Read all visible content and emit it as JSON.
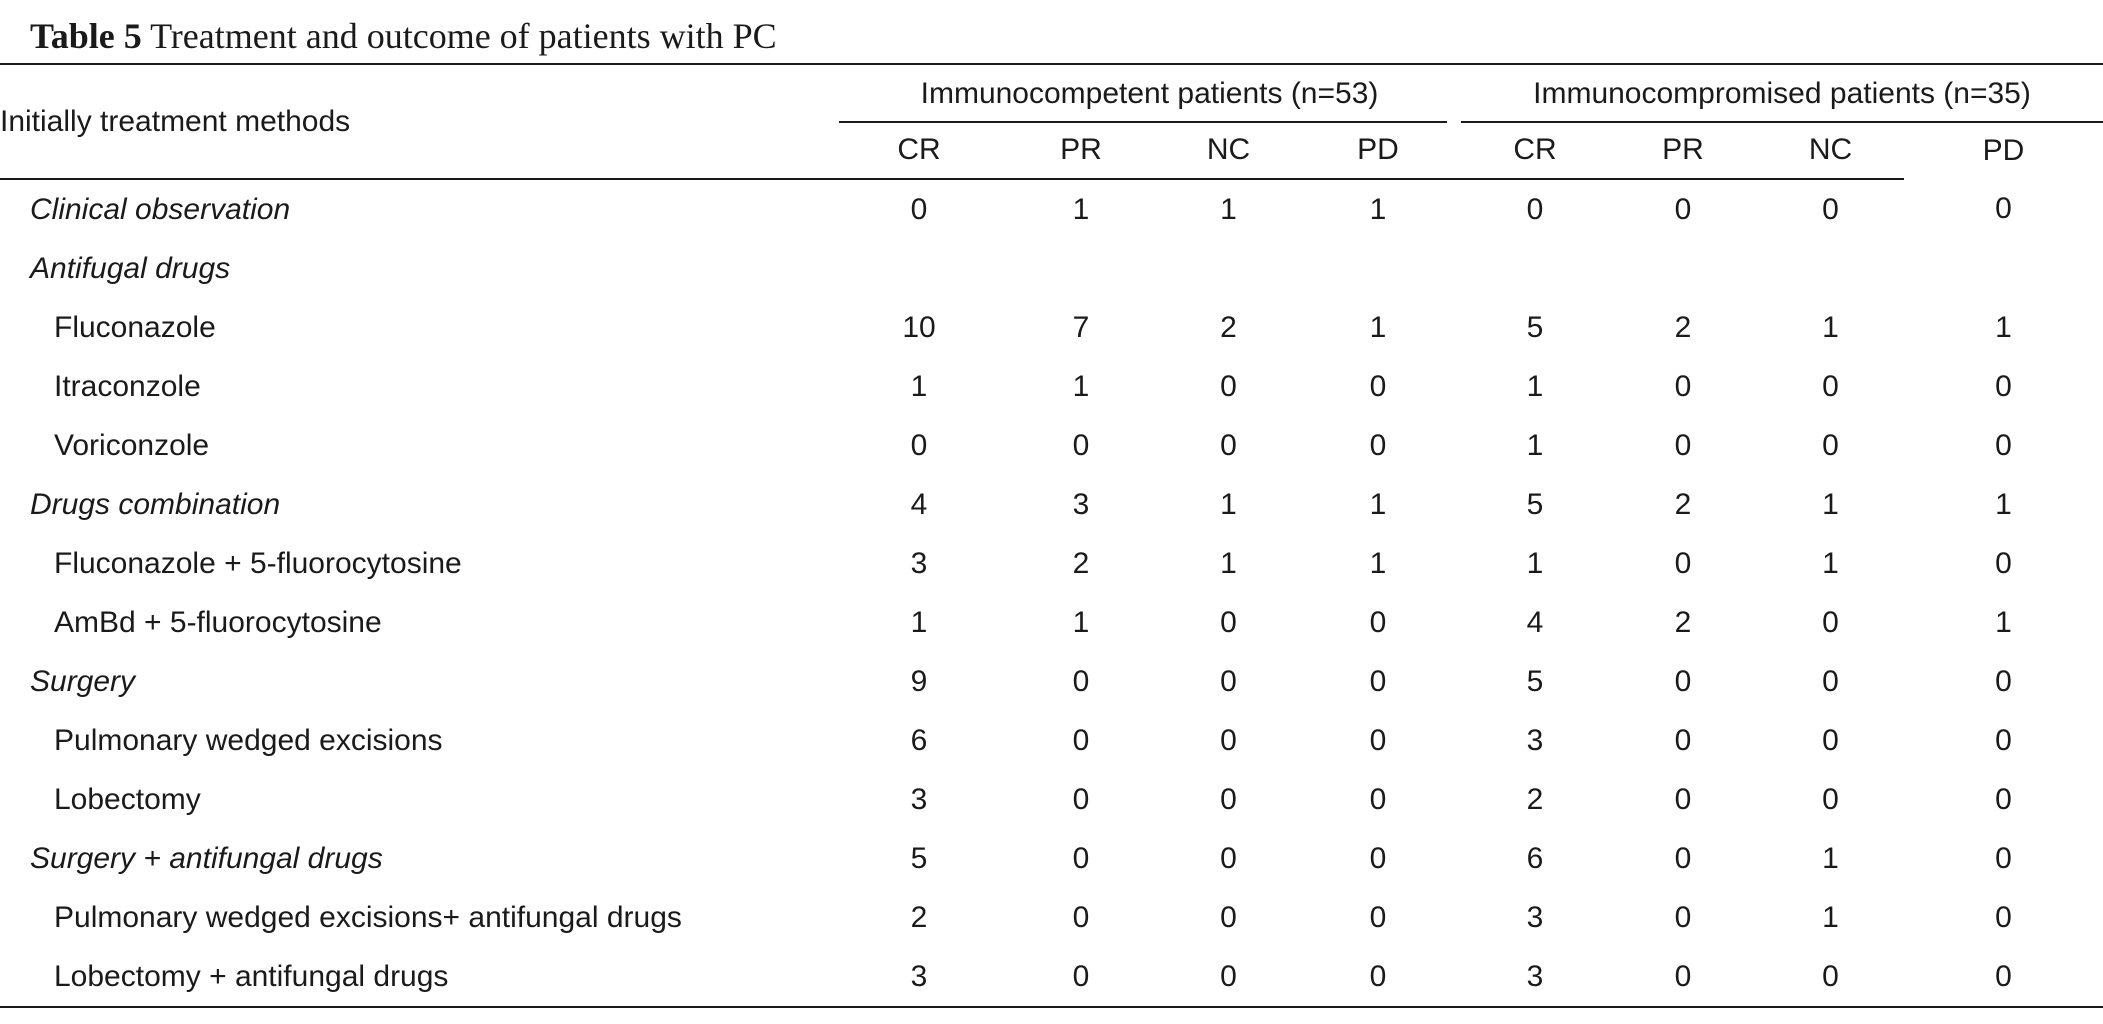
{
  "caption": {
    "label": "Table 5",
    "text": "Treatment and outcome of patients with PC"
  },
  "header": {
    "stub": "Initially treatment methods",
    "group_immunocompetent": "Immunocompetent patients (n=53)",
    "group_immunocompromised": "Immunocompromised patients (n=35)",
    "columns": [
      "CR",
      "PR",
      "NC",
      "PD",
      "CR",
      "PR",
      "NC",
      "PD"
    ]
  },
  "rows": [
    {
      "label": "Clinical observation",
      "kind": "category",
      "values": [
        "0",
        "1",
        "1",
        "1",
        "0",
        "0",
        "0",
        "0"
      ]
    },
    {
      "label": "Antifugal drugs",
      "kind": "category",
      "values": [
        "",
        "",
        "",
        "",
        "",
        "",
        "",
        ""
      ]
    },
    {
      "label": "Fluconazole",
      "kind": "sub",
      "values": [
        "10",
        "7",
        "2",
        "1",
        "5",
        "2",
        "1",
        "1"
      ]
    },
    {
      "label": "Itraconzole",
      "kind": "sub",
      "values": [
        "1",
        "1",
        "0",
        "0",
        "1",
        "0",
        "0",
        "0"
      ]
    },
    {
      "label": "Voriconzole",
      "kind": "sub",
      "values": [
        "0",
        "0",
        "0",
        "0",
        "1",
        "0",
        "0",
        "0"
      ]
    },
    {
      "label": "Drugs combination",
      "kind": "category",
      "values": [
        "4",
        "3",
        "1",
        "1",
        "5",
        "2",
        "1",
        "1"
      ]
    },
    {
      "label": "Fluconazole + 5-fluorocytosine",
      "kind": "sub",
      "values": [
        "3",
        "2",
        "1",
        "1",
        "1",
        "0",
        "1",
        "0"
      ]
    },
    {
      "label": "AmBd + 5-fluorocytosine",
      "kind": "sub",
      "values": [
        "1",
        "1",
        "0",
        "0",
        "4",
        "2",
        "0",
        "1"
      ]
    },
    {
      "label": "Surgery",
      "kind": "category",
      "values": [
        "9",
        "0",
        "0",
        "0",
        "5",
        "0",
        "0",
        "0"
      ]
    },
    {
      "label": "Pulmonary wedged excisions",
      "kind": "sub",
      "values": [
        "6",
        "0",
        "0",
        "0",
        "3",
        "0",
        "0",
        "0"
      ]
    },
    {
      "label": "Lobectomy",
      "kind": "sub",
      "values": [
        "3",
        "0",
        "0",
        "0",
        "2",
        "0",
        "0",
        "0"
      ]
    },
    {
      "label": "Surgery + antifungal drugs",
      "kind": "category",
      "values": [
        "5",
        "0",
        "0",
        "0",
        "6",
        "0",
        "1",
        "0"
      ]
    },
    {
      "label": "Pulmonary wedged excisions+ antifungal drugs",
      "kind": "sub",
      "values": [
        "2",
        "0",
        "0",
        "0",
        "3",
        "0",
        "1",
        "0"
      ]
    },
    {
      "label": "Lobectomy + antifungal drugs",
      "kind": "sub",
      "values": [
        "3",
        "0",
        "0",
        "0",
        "3",
        "0",
        "0",
        "0"
      ]
    }
  ]
}
